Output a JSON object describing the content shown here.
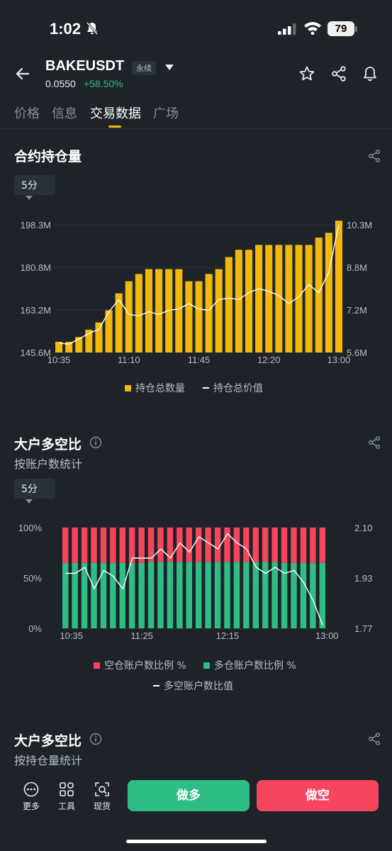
{
  "status_bar": {
    "time": "1:02",
    "battery": "79"
  },
  "header": {
    "symbol": "BAKEUSDT",
    "badge": "永续",
    "price": "0.0550",
    "change": "+58.50%"
  },
  "tabs": [
    {
      "label": "价格",
      "active": false
    },
    {
      "label": "信息",
      "active": false
    },
    {
      "label": "交易数据",
      "active": true
    },
    {
      "label": "广场",
      "active": false
    }
  ],
  "open_interest": {
    "title": "合约持仓量",
    "interval": "5分",
    "legend": {
      "bar": "持仓总数量",
      "line": "持仓总价值"
    },
    "colors": {
      "bar": "#f0b90b",
      "line": "#ffffff"
    }
  },
  "top_ratio_account": {
    "title": "大户多空比",
    "subtitle": "按账户数统计",
    "interval": "5分",
    "legend": {
      "short": "空仓账户数比例 %",
      "long": "多仓账户数比例 %",
      "ratio": "多空账户数比值"
    },
    "colors": {
      "short": "#f6465d",
      "long": "#2ebd85",
      "line": "#ffffff"
    }
  },
  "top_ratio_position": {
    "title": "大户多空比",
    "subtitle": "按持仓量统计"
  },
  "bottom_bar": {
    "more": "更多",
    "tools": "工具",
    "spot": "现货",
    "long": "做多",
    "short": "做空"
  },
  "chart_data": [
    {
      "type": "bar",
      "categories": [
        "10:35",
        "",
        "",
        "",
        "",
        "",
        "",
        "11:10",
        "",
        "",
        "",
        "",
        "",
        "",
        "11:45",
        "",
        "",
        "",
        "",
        "",
        "",
        "12:20",
        "",
        "",
        "",
        "",
        "",
        "",
        "13:00"
      ],
      "series": [
        {
          "type": "bar",
          "axis": "left",
          "values": [
            150,
            150,
            152,
            155,
            158,
            163,
            170,
            175,
            178,
            180,
            180,
            180,
            180,
            175,
            175,
            178,
            180,
            185,
            188,
            188,
            190,
            190,
            190,
            190,
            190,
            190,
            193,
            195,
            200
          ]
        },
        {
          "type": "line",
          "axis": "right",
          "values": [
            5.95,
            5.9,
            6.1,
            6.3,
            6.45,
            7.1,
            7.55,
            7.0,
            6.95,
            7.1,
            7.0,
            7.15,
            7.2,
            7.4,
            7.2,
            7.15,
            7.55,
            7.6,
            7.55,
            7.8,
            7.95,
            7.85,
            7.7,
            7.4,
            7.65,
            8.1,
            7.8,
            8.55,
            10.3
          ]
        }
      ],
      "y_left": {
        "ticks": [
          "198.3M",
          "180.8M",
          "163.2M",
          "145.6M"
        ],
        "range": [
          145.6,
          198.3
        ]
      },
      "y_right": {
        "ticks": [
          "10.3M",
          "8.8M",
          "7.2M",
          "5.6M"
        ],
        "range": [
          5.6,
          10.3
        ]
      },
      "x_ticks": [
        "10:35",
        "11:10",
        "11:45",
        "12:20",
        "13:00"
      ],
      "grid": true
    },
    {
      "type": "bar",
      "stacked": true,
      "categories": [
        "10:35",
        "",
        "",
        "",
        "",
        "",
        "",
        "",
        "11:25",
        "",
        "",
        "",
        "",
        "",
        "",
        "",
        "",
        "12:15",
        "",
        "",
        "",
        "",
        "",
        "",
        "",
        "",
        "",
        "13:00"
      ],
      "series": [
        {
          "name": "多仓账户数比例 %",
          "values": [
            65,
            65,
            65,
            65,
            65,
            65,
            65,
            65,
            65,
            66,
            66,
            66,
            66,
            66,
            66,
            66,
            66,
            66,
            66,
            66,
            66,
            66,
            66,
            65,
            65,
            65,
            65,
            65
          ]
        },
        {
          "name": "空仓账户数比例 %",
          "values": [
            35,
            35,
            35,
            35,
            35,
            35,
            35,
            35,
            35,
            34,
            34,
            34,
            34,
            34,
            34,
            34,
            34,
            34,
            34,
            34,
            34,
            34,
            34,
            35,
            35,
            35,
            35,
            35
          ]
        },
        {
          "name": "多空账户数比值",
          "type": "line",
          "axis": "right",
          "values": [
            1.95,
            1.95,
            1.97,
            1.9,
            1.96,
            1.94,
            1.9,
            2.0,
            2.0,
            2.0,
            2.03,
            2.0,
            2.05,
            2.02,
            2.07,
            2.05,
            2.03,
            2.08,
            2.05,
            2.03,
            1.97,
            1.95,
            1.97,
            1.95,
            1.96,
            1.92,
            1.86,
            1.78
          ]
        }
      ],
      "y_left": {
        "ticks": [
          "100%",
          "50%",
          "0%"
        ],
        "range": [
          0,
          100
        ]
      },
      "y_right": {
        "ticks": [
          "2.10",
          "1.93",
          "1.77"
        ],
        "range": [
          1.77,
          2.1
        ]
      },
      "x_ticks": [
        "10:35",
        "11:25",
        "12:15",
        "13:00"
      ]
    }
  ]
}
